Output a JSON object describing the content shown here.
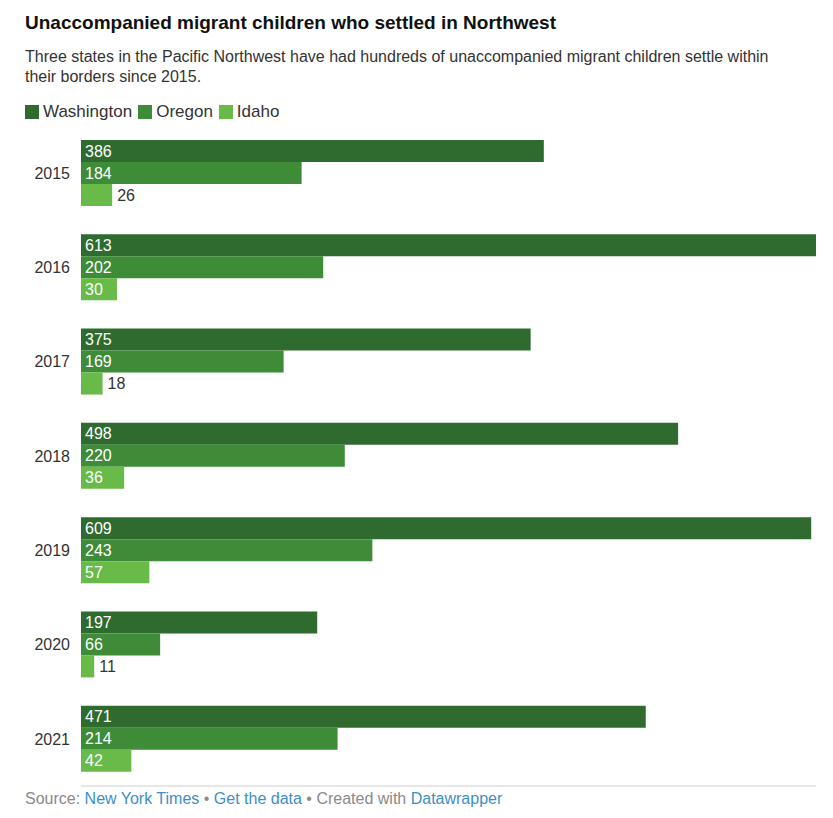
{
  "chart_data": {
    "type": "bar",
    "orientation": "horizontal",
    "title": "Unaccompanied migrant children who settled in Northwest",
    "subtitle": "Three states in the Pacific Northwest have had hundreds of unaccompanied migrant children settle within their borders since 2015.",
    "categories": [
      "2015",
      "2016",
      "2017",
      "2018",
      "2019",
      "2020",
      "2021"
    ],
    "series": [
      {
        "name": "Washington",
        "color": "#2f6b2e",
        "values": [
          386,
          613,
          375,
          498,
          609,
          197,
          471
        ]
      },
      {
        "name": "Oregon",
        "color": "#3e8c37",
        "values": [
          184,
          202,
          169,
          220,
          243,
          66,
          214
        ]
      },
      {
        "name": "Idaho",
        "color": "#68bb48",
        "values": [
          26,
          30,
          18,
          36,
          57,
          11,
          42
        ]
      }
    ],
    "xlim": [
      0,
      613
    ],
    "xticks": [],
    "data_labels": true,
    "tick_labels": "y",
    "legend": "top",
    "grid": false
  },
  "footer": {
    "source_label": "Source:",
    "source": "New York Times",
    "separator": "•",
    "data_link": "Get the data",
    "credit_label": "Created with",
    "credit": "Datawrapper"
  }
}
